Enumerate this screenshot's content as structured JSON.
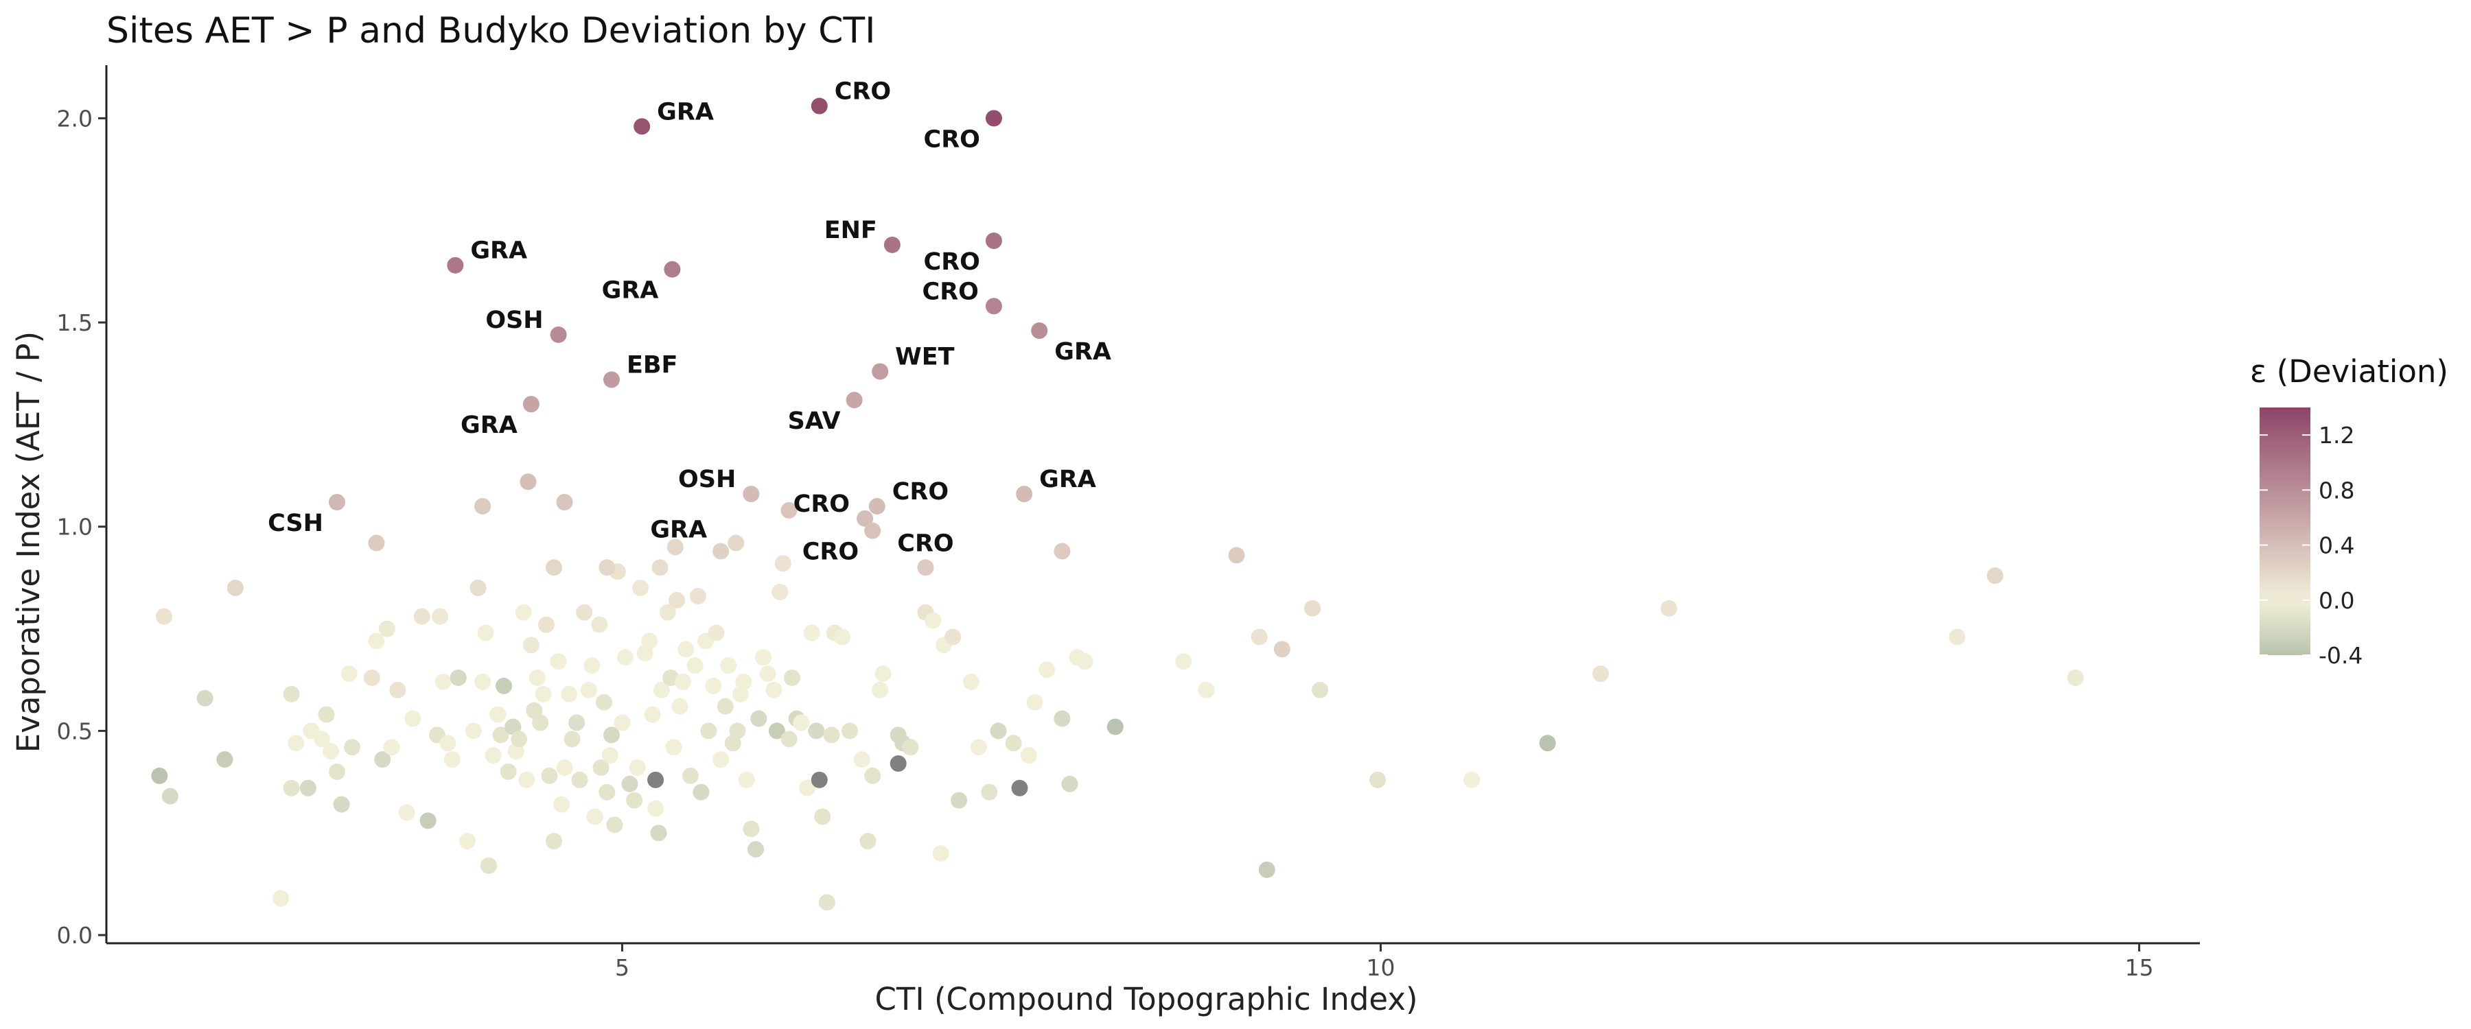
{
  "chart_data": {
    "type": "scatter",
    "title": "Sites AET > P and Budyko Deviation by CTI",
    "xlabel": "CTI (Compound Topographic Index)",
    "ylabel": "Evaporative Index (AET / P)",
    "xlim": [
      1.6,
      15.4
    ],
    "ylim": [
      -0.02,
      2.13
    ],
    "xticks": [
      5,
      10,
      15
    ],
    "yticks": [
      0.0,
      0.5,
      1.0,
      1.5,
      2.0
    ],
    "ytick_labels": [
      "0.0",
      "0.5",
      "1.0",
      "1.5",
      "2.0"
    ],
    "grid": false,
    "legend": {
      "title": "ε (Deviation)",
      "position": "right",
      "range": [
        -0.4,
        1.4
      ],
      "ticks": [
        1.2,
        0.8,
        0.4,
        0.0,
        -0.4
      ],
      "tick_labels": [
        "1.2",
        "0.8",
        "0.4",
        "0.0",
        "-0.4"
      ],
      "colors": {
        "low": "#b9c3ad",
        "mid": "#f2efd8",
        "high": "#8e4567"
      }
    },
    "missing_color": "#808080",
    "labeled_points": [
      {
        "x": 5.13,
        "y": 1.98,
        "eps": 1.28,
        "label": "GRA",
        "anchor": "right"
      },
      {
        "x": 6.3,
        "y": 2.03,
        "eps": 1.32,
        "label": "CRO",
        "anchor": "right"
      },
      {
        "x": 7.45,
        "y": 2.0,
        "eps": 1.33,
        "label": "CRO",
        "anchor": "below-left"
      },
      {
        "x": 3.9,
        "y": 1.64,
        "eps": 0.98,
        "label": "GRA",
        "anchor": "right"
      },
      {
        "x": 5.33,
        "y": 1.63,
        "eps": 0.95,
        "label": "GRA",
        "anchor": "below-left"
      },
      {
        "x": 6.78,
        "y": 1.69,
        "eps": 1.02,
        "label": "ENF",
        "anchor": "left"
      },
      {
        "x": 7.45,
        "y": 1.7,
        "eps": 1.02,
        "label": "CRO",
        "anchor": "below-left"
      },
      {
        "x": 7.45,
        "y": 1.54,
        "eps": 0.88,
        "label": "CRO",
        "anchor": "left"
      },
      {
        "x": 7.75,
        "y": 1.48,
        "eps": 0.8,
        "label": "GRA",
        "anchor": "below-right"
      },
      {
        "x": 4.58,
        "y": 1.47,
        "eps": 0.82,
        "label": "OSH",
        "anchor": "left"
      },
      {
        "x": 4.93,
        "y": 1.36,
        "eps": 0.7,
        "label": "EBF",
        "anchor": "right"
      },
      {
        "x": 6.7,
        "y": 1.38,
        "eps": 0.68,
        "label": "WET",
        "anchor": "right"
      },
      {
        "x": 4.4,
        "y": 1.3,
        "eps": 0.62,
        "label": "GRA",
        "anchor": "below-left"
      },
      {
        "x": 6.53,
        "y": 1.31,
        "eps": 0.6,
        "label": "SAV",
        "anchor": "below-left"
      },
      {
        "x": 3.12,
        "y": 1.06,
        "eps": 0.45,
        "label": "CSH",
        "anchor": "below-left"
      },
      {
        "x": 5.85,
        "y": 1.08,
        "eps": 0.42,
        "label": "OSH",
        "anchor": "left"
      },
      {
        "x": 6.68,
        "y": 1.05,
        "eps": 0.42,
        "label": "CRO",
        "anchor": "right"
      },
      {
        "x": 7.65,
        "y": 1.08,
        "eps": 0.43,
        "label": "GRA",
        "anchor": "right"
      },
      {
        "x": 6.6,
        "y": 1.02,
        "eps": 0.4,
        "label": "CRO",
        "anchor": "left"
      },
      {
        "x": 5.65,
        "y": 0.94,
        "eps": 0.25,
        "label": "GRA",
        "anchor": "above-left"
      },
      {
        "x": 6.65,
        "y": 0.99,
        "eps": 0.36,
        "label": "CRO",
        "anchor": "below-left"
      },
      {
        "x": 7.0,
        "y": 0.9,
        "eps": 0.3,
        "label": "CRO",
        "anchor": "above"
      }
    ],
    "points": [
      [
        1.95,
        0.39,
        -0.4
      ],
      [
        1.98,
        0.78,
        0.1
      ],
      [
        2.02,
        0.34,
        -0.2
      ],
      [
        2.25,
        0.58,
        -0.2
      ],
      [
        2.38,
        0.43,
        -0.3
      ],
      [
        2.45,
        0.85,
        0.2
      ],
      [
        2.75,
        0.09,
        0.0
      ],
      [
        2.82,
        0.36,
        -0.1
      ],
      [
        2.82,
        0.59,
        -0.1
      ],
      [
        2.85,
        0.47,
        0.0
      ],
      [
        2.93,
        0.36,
        -0.2
      ],
      [
        2.95,
        0.5,
        0.0
      ],
      [
        3.02,
        0.48,
        0.0
      ],
      [
        3.05,
        0.54,
        -0.1
      ],
      [
        3.08,
        0.45,
        0.0
      ],
      [
        3.12,
        0.4,
        -0.1
      ],
      [
        3.15,
        0.32,
        -0.2
      ],
      [
        3.2,
        0.64,
        0.0
      ],
      [
        3.22,
        0.46,
        -0.1
      ],
      [
        3.35,
        0.63,
        0.1
      ],
      [
        3.38,
        0.72,
        0.0
      ],
      [
        3.42,
        0.43,
        -0.2
      ],
      [
        3.45,
        0.75,
        -0.05
      ],
      [
        3.48,
        0.46,
        0.0
      ],
      [
        3.52,
        0.6,
        0.1
      ],
      [
        3.58,
        0.3,
        0.0
      ],
      [
        3.62,
        0.53,
        0.0
      ],
      [
        3.68,
        0.78,
        0.1
      ],
      [
        3.72,
        0.28,
        -0.3
      ],
      [
        3.78,
        0.49,
        -0.1
      ],
      [
        3.8,
        0.78,
        0.05
      ],
      [
        3.82,
        0.62,
        0.0
      ],
      [
        3.85,
        0.47,
        0.0
      ],
      [
        3.88,
        0.43,
        0.0
      ],
      [
        3.92,
        0.63,
        -0.2
      ],
      [
        3.98,
        0.23,
        0.0
      ],
      [
        4.02,
        0.5,
        0.0
      ],
      [
        4.05,
        0.85,
        0.15
      ],
      [
        4.08,
        0.62,
        0.0
      ],
      [
        4.1,
        0.74,
        0.0
      ],
      [
        4.12,
        0.17,
        -0.1
      ],
      [
        4.15,
        0.44,
        0.0
      ],
      [
        4.18,
        0.54,
        0.0
      ],
      [
        4.2,
        0.49,
        -0.1
      ],
      [
        4.22,
        0.61,
        -0.3
      ],
      [
        4.25,
        0.4,
        -0.1
      ],
      [
        4.28,
        0.51,
        -0.2
      ],
      [
        4.3,
        0.45,
        0.0
      ],
      [
        4.32,
        0.48,
        -0.1
      ],
      [
        4.35,
        0.79,
        0.0
      ],
      [
        4.37,
        0.38,
        0.0
      ],
      [
        4.4,
        0.71,
        0.05
      ],
      [
        4.42,
        0.55,
        -0.1
      ],
      [
        4.44,
        0.63,
        0.0
      ],
      [
        4.46,
        0.52,
        -0.1
      ],
      [
        4.48,
        0.59,
        0.0
      ],
      [
        4.5,
        0.76,
        0.1
      ],
      [
        4.52,
        0.39,
        -0.1
      ],
      [
        4.55,
        0.23,
        -0.1
      ],
      [
        4.58,
        0.67,
        0.0
      ],
      [
        4.6,
        0.32,
        0.0
      ],
      [
        4.62,
        0.41,
        0.0
      ],
      [
        4.65,
        0.59,
        0.0
      ],
      [
        4.67,
        0.48,
        -0.1
      ],
      [
        4.7,
        0.52,
        -0.15
      ],
      [
        4.72,
        0.38,
        -0.1
      ],
      [
        4.75,
        0.79,
        0.1
      ],
      [
        4.78,
        0.6,
        0.0
      ],
      [
        4.8,
        0.66,
        0.0
      ],
      [
        4.82,
        0.29,
        0.0
      ],
      [
        4.85,
        0.76,
        0.05
      ],
      [
        4.86,
        0.41,
        -0.1
      ],
      [
        4.88,
        0.57,
        -0.1
      ],
      [
        4.9,
        0.35,
        -0.1
      ],
      [
        4.92,
        0.44,
        0.0
      ],
      [
        4.93,
        0.49,
        -0.2
      ],
      [
        4.95,
        0.27,
        -0.1
      ],
      [
        4.97,
        0.89,
        0.1
      ],
      [
        5.0,
        0.52,
        0.0
      ],
      [
        5.02,
        0.68,
        0.0
      ],
      [
        5.05,
        0.37,
        -0.2
      ],
      [
        5.08,
        0.33,
        -0.1
      ],
      [
        5.1,
        0.41,
        0.0
      ],
      [
        5.12,
        0.85,
        0.05
      ],
      [
        5.15,
        0.69,
        0.0
      ],
      [
        5.18,
        0.72,
        0.0
      ],
      [
        5.2,
        0.54,
        0.0
      ],
      [
        5.22,
        0.31,
        0.0
      ],
      [
        5.24,
        0.25,
        -0.2
      ],
      [
        5.26,
        0.6,
        0.0
      ],
      [
        5.3,
        0.79,
        0.05
      ],
      [
        5.32,
        0.63,
        -0.1
      ],
      [
        5.34,
        0.46,
        0.0
      ],
      [
        5.36,
        0.82,
        0.1
      ],
      [
        5.38,
        0.56,
        0.0
      ],
      [
        5.4,
        0.62,
        0.0
      ],
      [
        5.42,
        0.7,
        0.0
      ],
      [
        5.45,
        0.39,
        -0.1
      ],
      [
        5.48,
        0.66,
        0.0
      ],
      [
        5.5,
        0.83,
        0.1
      ],
      [
        5.52,
        0.35,
        -0.2
      ],
      [
        5.55,
        0.72,
        0.0
      ],
      [
        5.57,
        0.5,
        -0.1
      ],
      [
        5.6,
        0.61,
        0.0
      ],
      [
        5.62,
        0.74,
        0.05
      ],
      [
        5.65,
        0.43,
        0.0
      ],
      [
        5.68,
        0.56,
        -0.1
      ],
      [
        5.7,
        0.66,
        0.0
      ],
      [
        5.73,
        0.47,
        -0.1
      ],
      [
        5.76,
        0.5,
        -0.1
      ],
      [
        5.78,
        0.59,
        0.0
      ],
      [
        5.8,
        0.62,
        0.0
      ],
      [
        5.82,
        0.38,
        0.0
      ],
      [
        5.85,
        0.26,
        -0.1
      ],
      [
        5.88,
        0.21,
        -0.2
      ],
      [
        5.9,
        0.53,
        -0.2
      ],
      [
        5.93,
        0.68,
        0.0
      ],
      [
        5.96,
        0.64,
        0.0
      ],
      [
        6.0,
        0.6,
        0.0
      ],
      [
        6.02,
        0.5,
        -0.3
      ],
      [
        6.04,
        0.84,
        0.05
      ],
      [
        6.06,
        0.91,
        0.1
      ],
      [
        6.1,
        0.48,
        -0.1
      ],
      [
        6.12,
        0.63,
        -0.1
      ],
      [
        6.15,
        0.53,
        -0.2
      ],
      [
        6.18,
        0.52,
        0.0
      ],
      [
        6.22,
        0.36,
        0.0
      ],
      [
        6.25,
        0.74,
        0.0
      ],
      [
        6.28,
        0.5,
        -0.2
      ],
      [
        6.32,
        0.29,
        -0.1
      ],
      [
        6.35,
        0.08,
        -0.1
      ],
      [
        6.38,
        0.49,
        -0.1
      ],
      [
        6.4,
        0.74,
        0.05
      ],
      [
        6.45,
        0.73,
        0.0
      ],
      [
        6.5,
        0.5,
        -0.1
      ],
      [
        6.58,
        0.43,
        0.0
      ],
      [
        6.62,
        0.23,
        -0.1
      ],
      [
        6.65,
        0.39,
        -0.1
      ],
      [
        6.7,
        0.6,
        0.0
      ],
      [
        6.72,
        0.64,
        0.0
      ],
      [
        6.82,
        0.49,
        -0.2
      ],
      [
        6.85,
        0.47,
        -0.2
      ],
      [
        6.9,
        0.46,
        -0.1
      ],
      [
        7.0,
        0.79,
        0.1
      ],
      [
        7.05,
        0.77,
        0.0
      ],
      [
        7.1,
        0.2,
        0.0
      ],
      [
        7.12,
        0.71,
        0.0
      ],
      [
        7.18,
        0.73,
        0.1
      ],
      [
        7.22,
        0.33,
        -0.2
      ],
      [
        7.3,
        0.62,
        0.0
      ],
      [
        7.35,
        0.46,
        0.0
      ],
      [
        7.42,
        0.35,
        -0.1
      ],
      [
        7.48,
        0.5,
        -0.2
      ],
      [
        7.58,
        0.47,
        -0.1
      ],
      [
        7.68,
        0.44,
        0.0
      ],
      [
        7.72,
        0.57,
        0.0
      ],
      [
        7.8,
        0.65,
        0.0
      ],
      [
        7.9,
        0.53,
        -0.2
      ],
      [
        7.95,
        0.37,
        -0.2
      ],
      [
        8.0,
        0.68,
        0.0
      ],
      [
        8.05,
        0.67,
        0.0
      ],
      [
        8.25,
        0.51,
        -0.4
      ],
      [
        7.9,
        0.94,
        0.3
      ],
      [
        8.7,
        0.67,
        0.0
      ],
      [
        8.85,
        0.6,
        0.0
      ],
      [
        9.05,
        0.93,
        0.3
      ],
      [
        9.2,
        0.73,
        0.1
      ],
      [
        9.25,
        0.16,
        -0.3
      ],
      [
        9.35,
        0.7,
        0.25
      ],
      [
        9.55,
        0.8,
        0.15
      ],
      [
        9.6,
        0.6,
        -0.1
      ],
      [
        9.98,
        0.38,
        -0.1
      ],
      [
        10.6,
        0.38,
        0.0
      ],
      [
        11.1,
        0.47,
        -0.4
      ],
      [
        11.45,
        0.64,
        0.1
      ],
      [
        11.9,
        0.8,
        0.1
      ],
      [
        13.8,
        0.73,
        0.05
      ],
      [
        14.05,
        0.88,
        0.2
      ],
      [
        14.58,
        0.63,
        -0.05
      ],
      [
        3.38,
        0.96,
        0.3
      ],
      [
        4.08,
        1.05,
        0.3
      ],
      [
        4.38,
        1.11,
        0.4
      ],
      [
        4.62,
        1.06,
        0.35
      ],
      [
        4.55,
        0.9,
        0.2
      ],
      [
        4.9,
        0.9,
        0.2
      ],
      [
        5.25,
        0.9,
        0.15
      ],
      [
        5.35,
        0.95,
        0.2
      ],
      [
        5.75,
        0.96,
        0.2
      ],
      [
        6.1,
        1.04,
        0.35
      ]
    ],
    "missing_points": [
      [
        5.22,
        0.38
      ],
      [
        6.3,
        0.38
      ],
      [
        6.82,
        0.42
      ],
      [
        7.62,
        0.36
      ]
    ]
  }
}
